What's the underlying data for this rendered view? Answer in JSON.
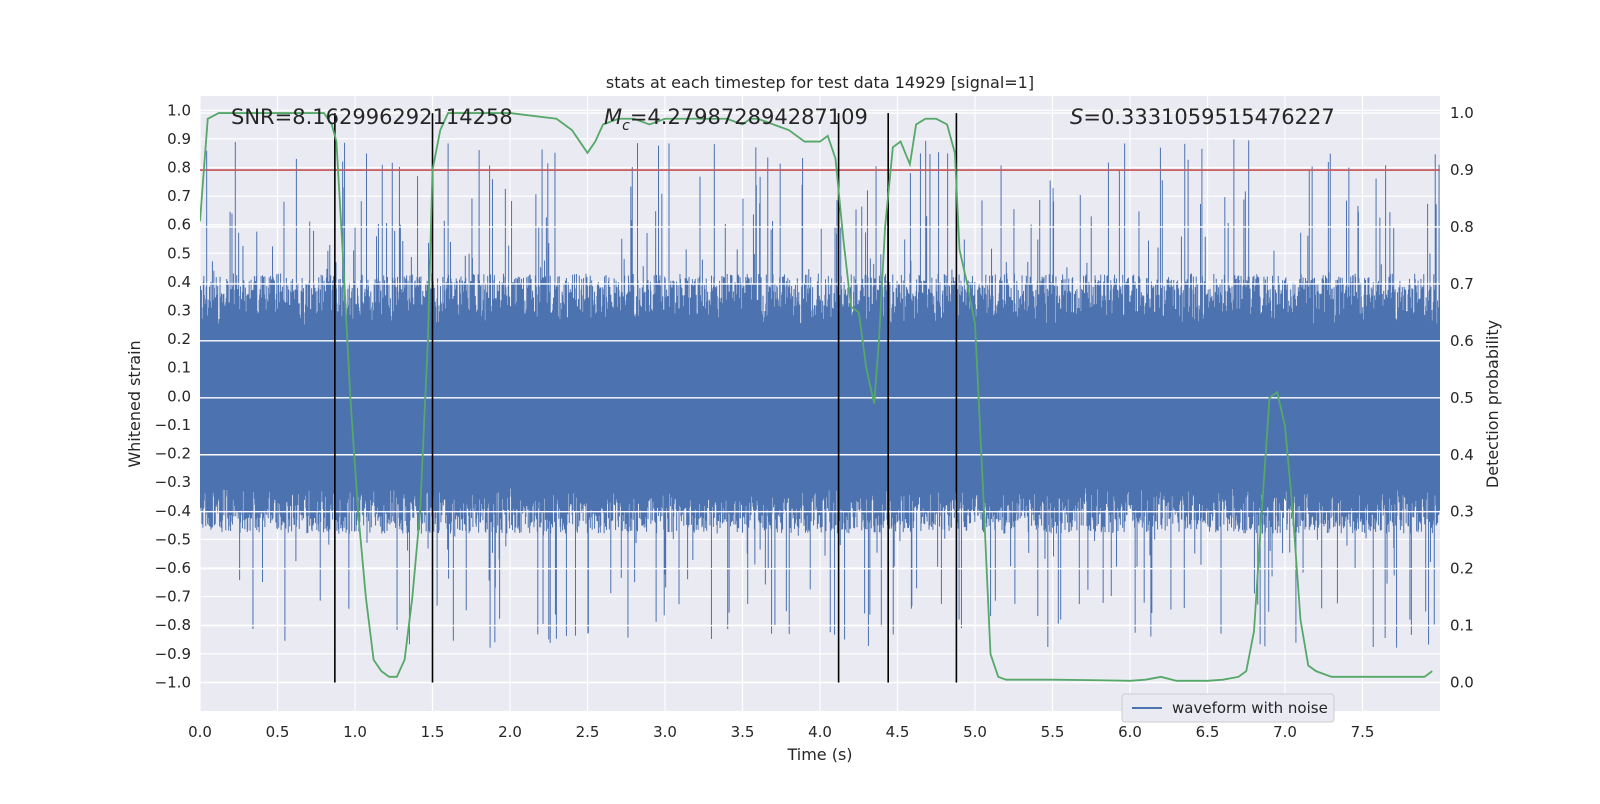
{
  "chart_data": {
    "type": "line",
    "title": "stats at each timestep for test data 14929 [signal=1]",
    "xlabel": "Time (s)",
    "ylabel": "Whitened strain",
    "ylabel_right": "Detection probability",
    "xlim": [
      0.0,
      8.0
    ],
    "ylim": [
      -1.1,
      1.05
    ],
    "ylim_right": [
      -0.05,
      1.03
    ],
    "grid": true,
    "legend_placement": "lower-right",
    "x_ticks": [
      "0.0",
      "0.5",
      "1.0",
      "1.5",
      "2.0",
      "2.5",
      "3.0",
      "3.5",
      "4.0",
      "4.5",
      "5.0",
      "5.5",
      "6.0",
      "6.5",
      "7.0",
      "7.5"
    ],
    "y_ticks": [
      "1.0",
      "0.9",
      "0.8",
      "0.7",
      "0.6",
      "0.5",
      "0.4",
      "0.3",
      "0.2",
      "0.1",
      "0.0",
      "-0.1",
      "-0.2",
      "-0.3",
      "-0.4",
      "-0.5",
      "-0.6",
      "-0.7",
      "-0.8",
      "-0.9",
      "-1.0"
    ],
    "y_right_ticks": [
      "1.0",
      "0.9",
      "0.8",
      "0.7",
      "0.6",
      "0.5",
      "0.4",
      "0.3",
      "0.2",
      "0.1",
      "0.0"
    ],
    "annotations": {
      "snr": "SNR=8.162996292114258",
      "mc_symbol": "M",
      "mc_sub": "c",
      "mc_value": "=4.279872894287109",
      "s_symbol": "S",
      "s_value": "=0.3331059515476227"
    },
    "threshold": {
      "value": 0.9,
      "color": "#c44e52"
    },
    "vertical_lines_x": [
      0.87,
      1.5,
      4.12,
      4.44,
      4.88
    ],
    "series": [
      {
        "name": "waveform with noise",
        "color": "#4c72b0",
        "axis": "left",
        "noise_band": {
          "core_min": -0.4,
          "core_max": 0.35,
          "peak_max": 0.9,
          "peak_min": -0.88
        }
      },
      {
        "color": "#55a868",
        "axis": "right",
        "x": [
          0.0,
          0.05,
          0.12,
          0.2,
          0.5,
          0.8,
          0.85,
          0.88,
          0.92,
          0.97,
          1.02,
          1.07,
          1.12,
          1.17,
          1.22,
          1.27,
          1.32,
          1.37,
          1.42,
          1.47,
          1.5,
          1.55,
          1.6,
          1.7,
          2.0,
          2.3,
          2.4,
          2.45,
          2.5,
          2.55,
          2.6,
          2.7,
          2.8,
          2.9,
          3.0,
          3.1,
          3.2,
          3.3,
          3.4,
          3.5,
          3.55,
          3.6,
          3.7,
          3.8,
          3.9,
          4.0,
          4.05,
          4.1,
          4.15,
          4.2,
          4.25,
          4.3,
          4.35,
          4.38,
          4.42,
          4.47,
          4.52,
          4.58,
          4.62,
          4.68,
          4.75,
          4.82,
          4.87,
          4.9,
          4.95,
          5.0,
          5.05,
          5.1,
          5.15,
          5.2,
          5.3,
          5.5,
          5.8,
          6.0,
          6.1,
          6.2,
          6.3,
          6.5,
          6.6,
          6.7,
          6.75,
          6.8,
          6.85,
          6.9,
          6.95,
          7.0,
          7.05,
          7.1,
          7.15,
          7.2,
          7.3,
          7.5,
          7.7,
          7.8,
          7.9,
          7.95
        ],
        "values": [
          0.81,
          0.99,
          1.0,
          1.0,
          1.0,
          1.0,
          0.98,
          0.95,
          0.76,
          0.5,
          0.3,
          0.15,
          0.04,
          0.02,
          0.01,
          0.01,
          0.04,
          0.15,
          0.3,
          0.6,
          0.9,
          0.97,
          1.0,
          1.0,
          1.0,
          0.99,
          0.97,
          0.95,
          0.93,
          0.95,
          0.98,
          0.99,
          0.99,
          0.98,
          0.99,
          0.99,
          0.99,
          0.99,
          0.99,
          0.98,
          0.99,
          0.99,
          0.98,
          0.97,
          0.95,
          0.95,
          0.96,
          0.92,
          0.78,
          0.66,
          0.65,
          0.55,
          0.49,
          0.6,
          0.8,
          0.94,
          0.95,
          0.91,
          0.98,
          0.99,
          0.99,
          0.98,
          0.93,
          0.76,
          0.7,
          0.63,
          0.35,
          0.05,
          0.01,
          0.005,
          0.005,
          0.005,
          0.004,
          0.003,
          0.005,
          0.01,
          0.003,
          0.003,
          0.005,
          0.01,
          0.02,
          0.09,
          0.3,
          0.5,
          0.51,
          0.45,
          0.3,
          0.11,
          0.03,
          0.02,
          0.01,
          0.01,
          0.01,
          0.01,
          0.01,
          0.02
        ]
      }
    ]
  }
}
